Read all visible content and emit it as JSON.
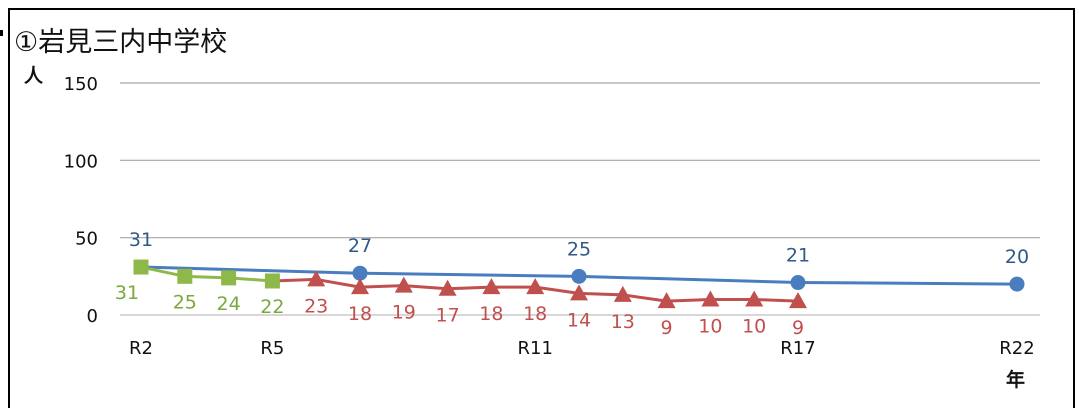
{
  "chart_data": {
    "type": "line",
    "title": "①岩見三内中学校",
    "ylabel": "人",
    "xlabel": "年",
    "ylim": [
      0,
      150
    ],
    "yticks": [
      0,
      50,
      100,
      150
    ],
    "x_categories": [
      "R2",
      "R3",
      "R4",
      "R5",
      "R6",
      "R7",
      "R8",
      "R9",
      "R10",
      "R11",
      "R12",
      "R13",
      "R14",
      "R15",
      "R16",
      "R17",
      "R18",
      "R19",
      "R20",
      "R21",
      "R22"
    ],
    "x_tick_labels": [
      {
        "x": "R2",
        "label": "R2"
      },
      {
        "x": "R5",
        "label": "R5"
      },
      {
        "x": "R11",
        "label": "R11"
      },
      {
        "x": "R17",
        "label": "R17"
      },
      {
        "x": "R22",
        "label": "R22"
      }
    ],
    "grid": true,
    "series": [
      {
        "marker": "circle",
        "color": "#4a7dc0",
        "label_color": "#2f5a8a",
        "points": [
          {
            "x": "R2",
            "y": 31,
            "label": "31",
            "marker": false
          },
          {
            "x": "R7",
            "y": 27,
            "label": "27"
          },
          {
            "x": "R12",
            "y": 25,
            "label": "25"
          },
          {
            "x": "R17",
            "y": 21,
            "label": "21"
          },
          {
            "x": "R22",
            "y": 20,
            "label": "20"
          }
        ]
      },
      {
        "marker": "square",
        "color": "#8fb84a",
        "label_color": "#7aa83c",
        "points": [
          {
            "x": "R2",
            "y": 31,
            "label": "31"
          },
          {
            "x": "R3",
            "y": 25,
            "label": "25"
          },
          {
            "x": "R4",
            "y": 24,
            "label": "24"
          },
          {
            "x": "R5",
            "y": 22,
            "label": "22"
          }
        ]
      },
      {
        "marker": "triangle",
        "color": "#c0504d",
        "label_color": "#c0504d",
        "points": [
          {
            "x": "R5",
            "y": 22,
            "label": "",
            "marker": false
          },
          {
            "x": "R6",
            "y": 23,
            "label": "23"
          },
          {
            "x": "R7",
            "y": 18,
            "label": "18"
          },
          {
            "x": "R8",
            "y": 19,
            "label": "19"
          },
          {
            "x": "R9",
            "y": 17,
            "label": "17"
          },
          {
            "x": "R10",
            "y": 18,
            "label": "18"
          },
          {
            "x": "R11",
            "y": 18,
            "label": "18"
          },
          {
            "x": "R12",
            "y": 14,
            "label": "14"
          },
          {
            "x": "R13",
            "y": 13,
            "label": "13"
          },
          {
            "x": "R14",
            "y": 9,
            "label": "9"
          },
          {
            "x": "R15",
            "y": 10,
            "label": "10"
          },
          {
            "x": "R16",
            "y": 10,
            "label": "10"
          },
          {
            "x": "R17",
            "y": 9,
            "label": "9"
          }
        ]
      }
    ]
  }
}
